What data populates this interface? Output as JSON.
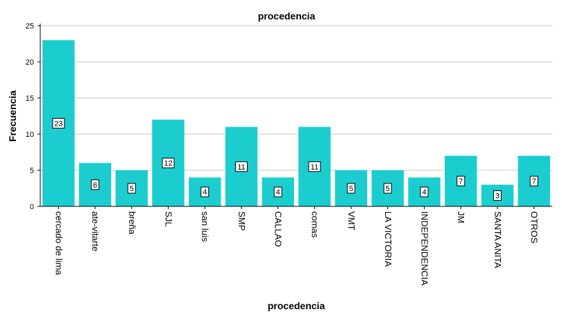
{
  "chart_data": {
    "type": "bar",
    "title": "procedencia",
    "xlabel": "procedencia",
    "ylabel": "Frecuencia",
    "categories": [
      "cercado de lima",
      "ate-vitarte",
      "breña",
      "SJL",
      "san luis",
      "SMP",
      "CALLAO",
      "comas",
      "VMT",
      "LA VICTORIA",
      "INDEPENDENCIA",
      "JM",
      "SANTA ANITA",
      "OTROS"
    ],
    "values": [
      23,
      6,
      5,
      12,
      4,
      11,
      4,
      11,
      5,
      5,
      4,
      7,
      3,
      7
    ],
    "ylim": [
      0,
      25
    ],
    "yticks": [
      0,
      5,
      10,
      15,
      20,
      25
    ],
    "grid": true,
    "bar_color": "#1ccdd0",
    "data_labels": true
  }
}
